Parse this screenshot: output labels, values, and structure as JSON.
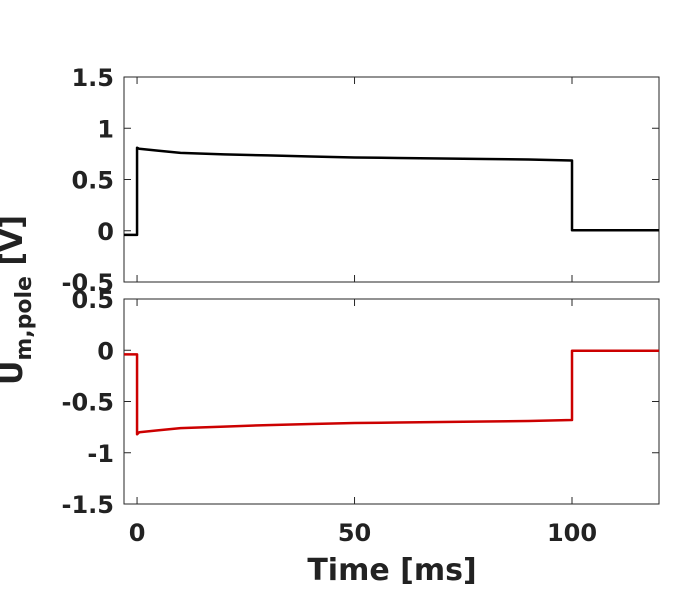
{
  "chart_data": [
    {
      "type": "line",
      "panel": "top",
      "xlim": [
        -3,
        120
      ],
      "ylim": [
        -0.5,
        1.5
      ],
      "yticks": [
        -0.5,
        0,
        0.5,
        1,
        1.5
      ],
      "ytick_labels": [
        "-0.5",
        "0",
        "0.5",
        "1",
        "1.5"
      ],
      "xticks": [
        0,
        50,
        100
      ],
      "xtick_labels": [],
      "series": [
        {
          "color": "#000000",
          "points": [
            [
              -3,
              -0.04
            ],
            [
              0,
              -0.04
            ],
            [
              0,
              0.81
            ],
            [
              0.5,
              0.8
            ],
            [
              5,
              0.78
            ],
            [
              10,
              0.76
            ],
            [
              20,
              0.745
            ],
            [
              30,
              0.735
            ],
            [
              40,
              0.725
            ],
            [
              50,
              0.715
            ],
            [
              60,
              0.71
            ],
            [
              70,
              0.705
            ],
            [
              80,
              0.7
            ],
            [
              90,
              0.695
            ],
            [
              99.9,
              0.685
            ],
            [
              100,
              0.685
            ],
            [
              100,
              0.005
            ],
            [
              120,
              0.005
            ]
          ]
        }
      ]
    },
    {
      "type": "line",
      "panel": "bottom",
      "xlim": [
        -3,
        120
      ],
      "ylim": [
        -1.5,
        0.5
      ],
      "yticks": [
        -1.5,
        -1,
        -0.5,
        0,
        0.5
      ],
      "ytick_labels": [
        "-1.5",
        "-1",
        "-0.5",
        "0",
        "0.5"
      ],
      "xticks": [
        0,
        50,
        100
      ],
      "xtick_labels": [
        "0",
        "50",
        "100"
      ],
      "series": [
        {
          "color": "#cc0000",
          "points": [
            [
              -3,
              -0.04
            ],
            [
              0,
              -0.04
            ],
            [
              0,
              -0.82
            ],
            [
              0.5,
              -0.8
            ],
            [
              5,
              -0.78
            ],
            [
              10,
              -0.76
            ],
            [
              20,
              -0.745
            ],
            [
              30,
              -0.73
            ],
            [
              40,
              -0.72
            ],
            [
              50,
              -0.71
            ],
            [
              60,
              -0.705
            ],
            [
              70,
              -0.7
            ],
            [
              80,
              -0.695
            ],
            [
              90,
              -0.69
            ],
            [
              99.9,
              -0.68
            ],
            [
              100,
              -0.68
            ],
            [
              100,
              -0.005
            ],
            [
              120,
              -0.005
            ]
          ]
        }
      ]
    }
  ],
  "labels": {
    "xlabel": "Time [ms]",
    "ylabel_main": "U",
    "ylabel_sub": "m,pole",
    "ylabel_unit": " [V]"
  }
}
